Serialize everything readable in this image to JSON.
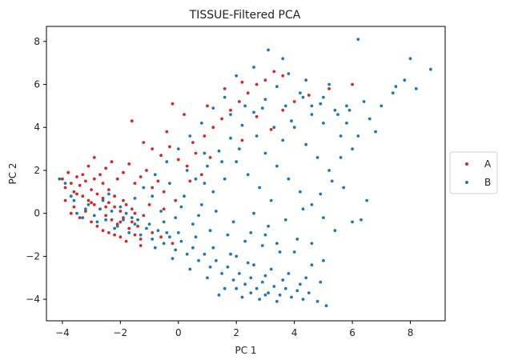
{
  "chart_data": {
    "type": "scatter",
    "title": "TISSUE-Filtered PCA",
    "xlabel": "PC 1",
    "ylabel": "PC 2",
    "xlim": [
      -4.55,
      9.2
    ],
    "ylim": [
      -5.0,
      8.7
    ],
    "xticks": [
      -4,
      -2,
      0,
      2,
      4,
      6,
      8
    ],
    "yticks": [
      -4,
      -2,
      0,
      2,
      4,
      6,
      8
    ],
    "xtick_labels": [
      "−4",
      "−2",
      "0",
      "2",
      "4",
      "6",
      "8"
    ],
    "ytick_labels": [
      "−4",
      "−2",
      "0",
      "2",
      "4",
      "6",
      "8"
    ],
    "grid": false,
    "legend_position": "center-right (outside)",
    "series": [
      {
        "name": "A",
        "color": "#d62728",
        "points": [
          [
            -4.0,
            1.6
          ],
          [
            -3.9,
            1.2
          ],
          [
            -3.8,
            1.9
          ],
          [
            -3.7,
            1.4
          ],
          [
            -3.6,
            1.0
          ],
          [
            -3.5,
            1.7
          ],
          [
            -3.4,
            1.3
          ],
          [
            -3.3,
            0.8
          ],
          [
            -3.2,
            1.5
          ],
          [
            -3.1,
            0.6
          ],
          [
            -3.0,
            1.1
          ],
          [
            -2.9,
            0.4
          ],
          [
            -2.8,
            0.9
          ],
          [
            -2.7,
            0.2
          ],
          [
            -2.6,
            0.7
          ],
          [
            -2.5,
            -0.1
          ],
          [
            -2.4,
            0.5
          ],
          [
            -2.3,
            -0.3
          ],
          [
            -2.2,
            0.3
          ],
          [
            -2.1,
            -0.5
          ],
          [
            -2.0,
            0.1
          ],
          [
            -1.9,
            -0.2
          ],
          [
            -1.8,
            0.4
          ],
          [
            -1.7,
            -0.7
          ],
          [
            -1.6,
            -0.4
          ],
          [
            -1.5,
            -1.0
          ],
          [
            -1.4,
            -0.6
          ],
          [
            -1.3,
            -1.2
          ],
          [
            -3.6,
            0.3
          ],
          [
            -3.4,
            -0.2
          ],
          [
            -3.2,
            0.1
          ],
          [
            -3.0,
            -0.4
          ],
          [
            -2.8,
            -0.6
          ],
          [
            -2.6,
            -0.8
          ],
          [
            -2.4,
            -0.9
          ],
          [
            -2.2,
            -1.0
          ],
          [
            -2.0,
            -1.1
          ],
          [
            -1.8,
            -1.3
          ],
          [
            -3.1,
            2.2
          ],
          [
            -2.9,
            2.6
          ],
          [
            -2.7,
            1.8
          ],
          [
            -2.5,
            2.1
          ],
          [
            -2.3,
            2.4
          ],
          [
            -2.1,
            1.6
          ],
          [
            -1.9,
            1.9
          ],
          [
            -1.7,
            2.3
          ],
          [
            -1.5,
            1.4
          ],
          [
            -1.3,
            1.7
          ],
          [
            -1.1,
            2.0
          ],
          [
            -0.9,
            1.2
          ],
          [
            -0.7,
            1.5
          ],
          [
            -0.5,
            1.0
          ],
          [
            -1.2,
            3.3
          ],
          [
            -0.9,
            3.0
          ],
          [
            -0.6,
            2.7
          ],
          [
            -0.3,
            3.1
          ],
          [
            0.0,
            2.5
          ],
          [
            0.3,
            2.2
          ],
          [
            0.6,
            2.8
          ],
          [
            0.9,
            3.6
          ],
          [
            1.2,
            4.0
          ],
          [
            1.5,
            4.4
          ],
          [
            1.8,
            4.8
          ],
          [
            2.1,
            5.2
          ],
          [
            2.4,
            5.6
          ],
          [
            2.7,
            6.0
          ],
          [
            3.0,
            6.2
          ],
          [
            3.3,
            6.6
          ],
          [
            3.6,
            6.4
          ],
          [
            -1.6,
            4.3
          ],
          [
            -0.4,
            3.8
          ],
          [
            0.5,
            3.3
          ],
          [
            1.0,
            5.0
          ],
          [
            1.6,
            5.8
          ],
          [
            2.2,
            6.1
          ],
          [
            0.2,
            4.6
          ],
          [
            -0.2,
            5.1
          ],
          [
            2.7,
            4.5
          ],
          [
            3.2,
            3.9
          ],
          [
            3.6,
            4.8
          ],
          [
            4.0,
            5.2
          ],
          [
            4.5,
            5.5
          ],
          [
            5.2,
            5.8
          ],
          [
            6.0,
            6.0
          ],
          [
            2.2,
            3.4
          ],
          [
            1.1,
            2.6
          ],
          [
            -1.3,
            -1.5
          ],
          [
            -0.9,
            -0.9
          ],
          [
            -0.6,
            -1.1
          ],
          [
            -0.2,
            -1.4
          ],
          [
            -3.9,
            0.6
          ],
          [
            -3.5,
            0.9
          ],
          [
            -3.3,
            1.8
          ],
          [
            -2.9,
            1.6
          ],
          [
            -2.6,
            1.4
          ],
          [
            -2.4,
            1.1
          ],
          [
            -2.2,
            0.8
          ],
          [
            -1.9,
            0.6
          ],
          [
            -1.6,
            0.2
          ],
          [
            -1.2,
            -0.1
          ],
          [
            -3.7,
            0.0
          ],
          [
            -3.0,
            0.5
          ],
          [
            -2.5,
            0.3
          ],
          [
            -2.0,
            -0.4
          ],
          [
            -1.5,
            0.0
          ],
          [
            -1.0,
            0.4
          ],
          [
            -0.5,
            0.2
          ],
          [
            -0.1,
            0.6
          ],
          [
            0.4,
            1.5
          ],
          [
            0.8,
            1.8
          ]
        ]
      },
      {
        "name": "B",
        "color": "#1f77b4",
        "points": [
          [
            -3.9,
            1.4
          ],
          [
            -3.7,
            0.8
          ],
          [
            -3.5,
            0.0
          ],
          [
            -3.3,
            -0.2
          ],
          [
            -3.1,
            0.4
          ],
          [
            -2.9,
            -0.1
          ],
          [
            -2.7,
            0.2
          ],
          [
            -2.5,
            -0.3
          ],
          [
            -2.3,
            0.1
          ],
          [
            -2.1,
            -0.6
          ],
          [
            -1.9,
            -0.3
          ],
          [
            -1.7,
            -0.9
          ],
          [
            -1.5,
            -0.5
          ],
          [
            -1.3,
            -1.0
          ],
          [
            -1.1,
            -0.7
          ],
          [
            -0.9,
            -1.2
          ],
          [
            -0.7,
            -0.8
          ],
          [
            -0.5,
            -1.4
          ],
          [
            -0.3,
            -1.1
          ],
          [
            -0.1,
            -1.7
          ],
          [
            0.1,
            -1.3
          ],
          [
            0.3,
            -1.9
          ],
          [
            0.5,
            -1.6
          ],
          [
            0.7,
            -2.2
          ],
          [
            0.9,
            -1.9
          ],
          [
            1.1,
            -2.5
          ],
          [
            1.3,
            -2.2
          ],
          [
            1.5,
            -2.8
          ],
          [
            1.7,
            -2.5
          ],
          [
            1.9,
            -3.1
          ],
          [
            2.1,
            -2.8
          ],
          [
            2.3,
            -3.3
          ],
          [
            2.5,
            -3.0
          ],
          [
            2.7,
            -3.5
          ],
          [
            2.9,
            -3.2
          ],
          [
            3.1,
            -3.7
          ],
          [
            3.3,
            -3.4
          ],
          [
            3.5,
            -3.8
          ],
          [
            3.7,
            -3.5
          ],
          [
            3.9,
            -3.9
          ],
          [
            4.1,
            -3.6
          ],
          [
            4.3,
            -4.0
          ],
          [
            4.5,
            -3.7
          ],
          [
            5.1,
            -4.3
          ],
          [
            4.8,
            -4.1
          ],
          [
            1.6,
            -3.5
          ],
          [
            2.2,
            -3.9
          ],
          [
            2.8,
            -4.0
          ],
          [
            3.4,
            -4.1
          ],
          [
            1.0,
            -3.0
          ],
          [
            0.4,
            -2.6
          ],
          [
            -0.2,
            -2.1
          ],
          [
            -0.8,
            -1.6
          ],
          [
            2.0,
            -2.0
          ],
          [
            2.6,
            -2.4
          ],
          [
            3.2,
            -2.6
          ],
          [
            3.8,
            -2.8
          ],
          [
            4.4,
            -3.0
          ],
          [
            4.9,
            -3.2
          ],
          [
            5.0,
            -2.2
          ],
          [
            4.6,
            -2.4
          ],
          [
            3.5,
            -1.8
          ],
          [
            2.9,
            -1.5
          ],
          [
            2.3,
            -1.3
          ],
          [
            1.7,
            -1.0
          ],
          [
            1.1,
            -0.8
          ],
          [
            0.5,
            -0.5
          ],
          [
            -0.1,
            -0.2
          ],
          [
            -0.6,
            0.1
          ],
          [
            4.1,
            -1.2
          ],
          [
            0.2,
            0.8
          ],
          [
            0.6,
            1.6
          ],
          [
            1.0,
            2.2
          ],
          [
            1.4,
            2.9
          ],
          [
            1.8,
            3.5
          ],
          [
            2.2,
            4.1
          ],
          [
            2.6,
            4.7
          ],
          [
            3.0,
            5.3
          ],
          [
            3.4,
            5.9
          ],
          [
            3.8,
            6.5
          ],
          [
            4.2,
            5.6
          ],
          [
            4.6,
            5.0
          ],
          [
            5.0,
            5.4
          ],
          [
            5.4,
            4.8
          ],
          [
            5.8,
            4.2
          ],
          [
            6.2,
            3.6
          ],
          [
            6.6,
            4.4
          ],
          [
            7.0,
            5.0
          ],
          [
            7.4,
            5.6
          ],
          [
            7.8,
            6.2
          ],
          [
            8.2,
            5.8
          ],
          [
            8.7,
            6.7
          ],
          [
            8.0,
            7.2
          ],
          [
            6.2,
            8.1
          ],
          [
            7.5,
            5.9
          ],
          [
            5.8,
            5.0
          ],
          [
            5.2,
            6.0
          ],
          [
            4.4,
            6.2
          ],
          [
            3.6,
            7.2
          ],
          [
            3.1,
            7.6
          ],
          [
            2.6,
            6.8
          ],
          [
            2.0,
            6.4
          ],
          [
            1.6,
            5.4
          ],
          [
            1.2,
            4.9
          ],
          [
            0.8,
            4.2
          ],
          [
            0.4,
            3.6
          ],
          [
            0.0,
            3.0
          ],
          [
            -0.4,
            2.4
          ],
          [
            -0.8,
            1.8
          ],
          [
            -1.2,
            1.2
          ],
          [
            3.0,
            2.8
          ],
          [
            3.4,
            2.2
          ],
          [
            3.8,
            1.6
          ],
          [
            4.2,
            1.0
          ],
          [
            4.6,
            0.4
          ],
          [
            5.0,
            -0.2
          ],
          [
            5.4,
            -0.8
          ],
          [
            3.2,
            0.6
          ],
          [
            2.8,
            1.2
          ],
          [
            2.4,
            1.8
          ],
          [
            2.0,
            2.4
          ],
          [
            1.6,
            1.6
          ],
          [
            1.2,
            1.0
          ],
          [
            0.8,
            0.4
          ],
          [
            3.6,
            3.4
          ],
          [
            4.0,
            4.0
          ],
          [
            4.4,
            3.2
          ],
          [
            4.8,
            2.6
          ],
          [
            5.2,
            2.0
          ],
          [
            5.6,
            2.6
          ],
          [
            6.0,
            3.0
          ],
          [
            5.6,
            3.6
          ],
          [
            5.0,
            4.2
          ],
          [
            4.6,
            4.6
          ],
          [
            3.9,
            4.3
          ],
          [
            3.3,
            4.0
          ],
          [
            2.7,
            3.6
          ],
          [
            2.1,
            3.0
          ],
          [
            1.5,
            2.4
          ],
          [
            0.9,
            1.4
          ],
          [
            6.5,
            0.6
          ],
          [
            6.3,
            -0.3
          ],
          [
            6.0,
            -0.4
          ],
          [
            5.7,
            1.2
          ],
          [
            5.3,
            1.5
          ],
          [
            4.9,
            0.9
          ],
          [
            4.3,
            0.2
          ],
          [
            3.7,
            -0.3
          ],
          [
            3.1,
            -0.6
          ],
          [
            2.5,
            -0.9
          ],
          [
            1.9,
            -0.4
          ],
          [
            1.3,
            0.1
          ],
          [
            0.7,
            -0.1
          ],
          [
            0.1,
            0.3
          ],
          [
            -0.5,
            -0.4
          ],
          [
            2.6,
            0.0
          ],
          [
            3.0,
            -1.0
          ],
          [
            3.4,
            -1.4
          ],
          [
            4.0,
            -1.8
          ],
          [
            4.6,
            -1.4
          ],
          [
            -2.6,
            0.6
          ],
          [
            -2.4,
            0.9
          ],
          [
            -2.0,
            0.3
          ],
          [
            -1.8,
            0.0
          ],
          [
            -1.6,
            -0.2
          ],
          [
            -1.4,
            -0.3
          ],
          [
            -1.0,
            -0.5
          ],
          [
            -0.4,
            -0.9
          ],
          [
            0.0,
            -0.9
          ],
          [
            0.6,
            -1.1
          ],
          [
            1.2,
            -1.6
          ],
          [
            1.8,
            -1.9
          ],
          [
            2.4,
            -2.3
          ],
          [
            3.0,
            -2.9
          ],
          [
            3.6,
            -3.1
          ],
          [
            4.2,
            -3.3
          ],
          [
            1.4,
            -3.8
          ],
          [
            2.0,
            -3.5
          ],
          [
            2.5,
            -3.7
          ],
          [
            3.0,
            -3.8
          ],
          [
            5.9,
            4.8
          ],
          [
            6.4,
            5.2
          ],
          [
            6.8,
            3.8
          ],
          [
            5.5,
            4.6
          ],
          [
            4.9,
            5.1
          ],
          [
            4.3,
            5.4
          ],
          [
            3.7,
            5.0
          ],
          [
            2.9,
            4.9
          ],
          [
            2.3,
            5.0
          ],
          [
            1.8,
            4.6
          ],
          [
            0.9,
            2.8
          ],
          [
            0.3,
            2.0
          ],
          [
            -0.3,
            1.4
          ],
          [
            -0.9,
            0.8
          ],
          [
            -1.5,
            0.7
          ],
          [
            -2.2,
            -0.7
          ],
          [
            -2.8,
            -0.4
          ],
          [
            -3.2,
            0.2
          ],
          [
            -3.6,
            0.6
          ],
          [
            -4.1,
            1.6
          ]
        ]
      }
    ]
  }
}
